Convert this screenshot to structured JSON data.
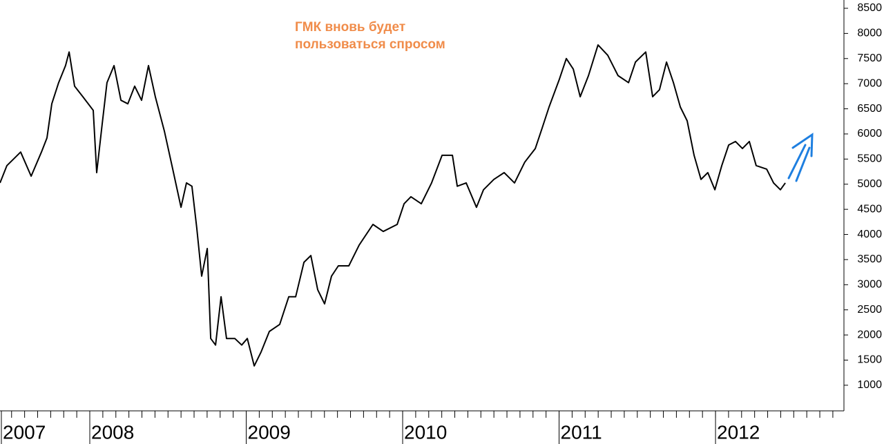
{
  "chart_data": {
    "type": "line",
    "annotation": [
      "ГМК вновь будет",
      "пользоваться спросом"
    ],
    "x": [
      2007.426,
      2007.47,
      2007.558,
      2007.625,
      2007.691,
      2007.726,
      2007.757,
      2007.801,
      2007.845,
      2007.868,
      2007.903,
      2007.956,
      2008.022,
      2008.044,
      2008.079,
      2008.11,
      2008.155,
      2008.199,
      2008.243,
      2008.287,
      2008.331,
      2008.375,
      2008.419,
      2008.477,
      2008.53,
      2008.583,
      2008.618,
      2008.653,
      2008.684,
      2008.715,
      2008.751,
      2008.773,
      2008.804,
      2008.839,
      2008.874,
      2008.927,
      2008.971,
      2009.007,
      2009.051,
      2009.095,
      2009.148,
      2009.214,
      2009.272,
      2009.316,
      2009.369,
      2009.413,
      2009.457,
      2009.501,
      2009.545,
      2009.589,
      2009.656,
      2009.722,
      2009.81,
      2009.876,
      2009.965,
      2010.009,
      2010.053,
      2010.119,
      2010.185,
      2010.252,
      2010.318,
      2010.349,
      2010.406,
      2010.472,
      2010.517,
      2010.583,
      2010.649,
      2010.715,
      2010.781,
      2010.848,
      2010.892,
      2010.936,
      2011.002,
      2011.046,
      2011.091,
      2011.135,
      2011.188,
      2011.249,
      2011.311,
      2011.377,
      2011.444,
      2011.488,
      2011.554,
      2011.598,
      2011.642,
      2011.687,
      2011.731,
      2011.775,
      2011.819,
      2011.863,
      2011.907,
      2011.951,
      2011.996,
      2012.04,
      2012.084,
      2012.128,
      2012.172,
      2012.216,
      2012.26,
      2012.327,
      2012.371,
      2012.415,
      2012.446
    ],
    "values": [
      5025,
      5370,
      5640,
      5160,
      5640,
      5920,
      6600,
      7020,
      7360,
      7630,
      6950,
      6740,
      6470,
      5230,
      6190,
      7020,
      7360,
      6670,
      6600,
      6950,
      6670,
      7360,
      6740,
      6050,
      5300,
      4540,
      5025,
      4960,
      4130,
      3170,
      3720,
      1930,
      1800,
      2760,
      1930,
      1930,
      1800,
      1930,
      1385,
      1660,
      2070,
      2210,
      2760,
      2760,
      3445,
      3580,
      2900,
      2620,
      3170,
      3375,
      3375,
      3790,
      4200,
      4060,
      4200,
      4610,
      4750,
      4610,
      5025,
      5575,
      5575,
      4960,
      5025,
      4540,
      4890,
      5095,
      5230,
      5025,
      5440,
      5710,
      6120,
      6535,
      7090,
      7500,
      7290,
      6740,
      7160,
      7770,
      7565,
      7160,
      7020,
      7430,
      7630,
      6740,
      6880,
      7430,
      7020,
      6535,
      6260,
      5575,
      5095,
      5230,
      4890,
      5370,
      5780,
      5850,
      5710,
      5850,
      5370,
      5300,
      5025,
      4890,
      5025
    ],
    "color": "#000000",
    "xlim": [
      2007.426,
      2012.821
    ],
    "xticks": [
      2007,
      2008,
      2009,
      2010,
      2011,
      2012
    ],
    "ylim": [
      490,
      8665
    ],
    "yticks": [
      1000,
      1500,
      2000,
      2500,
      3000,
      3500,
      4000,
      4500,
      5000,
      5500,
      6000,
      6500,
      7000,
      7500,
      8000,
      8500
    ]
  }
}
